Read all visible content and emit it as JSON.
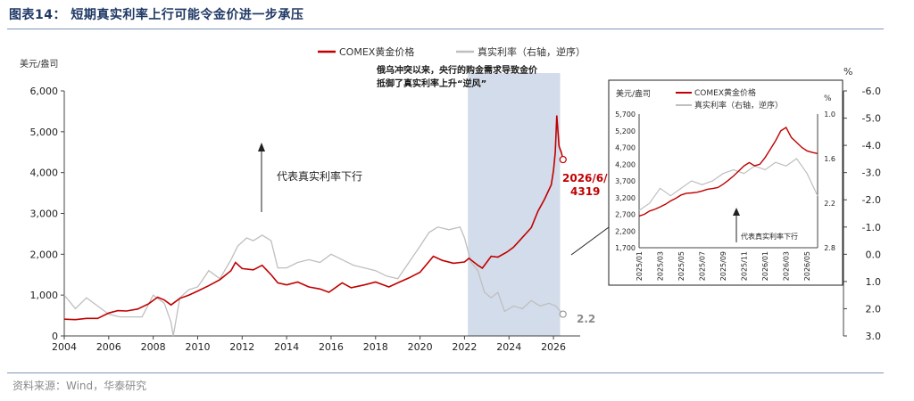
{
  "header": {
    "title": "图表14：  短期真实利率上行可能令金价进一步承压"
  },
  "footer": {
    "source": "资料来源：Wind，华泰研究"
  },
  "colors": {
    "gold": "#c00000",
    "real_rate": "#bfbfbf",
    "highlight": "#d3dcea",
    "rule": "#7f96b8"
  },
  "chart_data": [
    {
      "type": "line",
      "legend_position": "top",
      "grid": false,
      "ylabel": "美元/盎司",
      "y2label": "%",
      "ylim": [
        0,
        6000
      ],
      "y2lim": [
        3.0,
        -6.0
      ],
      "y2_inverted": true,
      "xlim": [
        2004,
        2026.8
      ],
      "x_ticks": [
        "2004",
        "2006",
        "2008",
        "2010",
        "2012",
        "2014",
        "2016",
        "2018",
        "2020",
        "2022",
        "2024",
        "2026"
      ],
      "y_ticks": [
        "0",
        "1,000",
        "2,000",
        "3,000",
        "4,000",
        "5,000",
        "6,000"
      ],
      "y2_ticks": [
        "3.0",
        "2.0",
        "1.0",
        "0.0",
        "-1.0",
        "-2.0",
        "-3.0",
        "-4.0",
        "-5.0",
        "-6.0"
      ],
      "shaded_region": [
        2022.15,
        2026.3
      ],
      "annotations": {
        "shaded": "俄乌冲突以来，央行的购金需求导致金价抵御了真实利率上升“逆风”",
        "shaded_lines": [
          "俄乌冲突以来，央行的购金需求导致金价",
          "抵御了真实利率上升“逆风”"
        ],
        "arrow_label": "代表真实利率下行",
        "end_date": "2026/6/5",
        "end_gold": "4319",
        "end_rate": "2.2"
      },
      "series": [
        {
          "name": "COMEX黄金价格",
          "axis": "left",
          "x": [
            2004.0,
            2004.5,
            2005.0,
            2005.5,
            2006.0,
            2006.4,
            2006.8,
            2007.3,
            2007.8,
            2008.2,
            2008.5,
            2008.8,
            2009.2,
            2009.6,
            2010.0,
            2010.5,
            2011.0,
            2011.5,
            2011.7,
            2012.0,
            2012.5,
            2012.9,
            2013.3,
            2013.6,
            2014.0,
            2014.5,
            2015.0,
            2015.5,
            2015.9,
            2016.5,
            2016.9,
            2017.5,
            2018.0,
            2018.6,
            2019.0,
            2019.5,
            2020.0,
            2020.6,
            2021.0,
            2021.5,
            2022.0,
            2022.2,
            2022.6,
            2022.8,
            2023.2,
            2023.5,
            2023.9,
            2024.2,
            2024.5,
            2025.0,
            2025.3,
            2025.6,
            2025.9,
            2026.0,
            2026.08,
            2026.15,
            2026.25,
            2026.35,
            2026.43
          ],
          "values": [
            410,
            400,
            430,
            430,
            560,
            620,
            610,
            660,
            790,
            950,
            880,
            760,
            920,
            1000,
            1100,
            1230,
            1380,
            1600,
            1800,
            1650,
            1620,
            1730,
            1500,
            1300,
            1250,
            1320,
            1200,
            1150,
            1070,
            1300,
            1180,
            1250,
            1320,
            1200,
            1300,
            1420,
            1560,
            1950,
            1850,
            1780,
            1810,
            1900,
            1730,
            1660,
            1950,
            1930,
            2050,
            2170,
            2350,
            2650,
            3050,
            3350,
            3700,
            4050,
            4500,
            5400,
            4650,
            4500,
            4319
          ]
        },
        {
          "name": "真实利率（右轴，逆序）",
          "axis": "right",
          "x": [
            2004.0,
            2004.5,
            2005.0,
            2005.5,
            2006.0,
            2006.5,
            2007.0,
            2007.5,
            2008.0,
            2008.5,
            2008.8,
            2008.9,
            2009.2,
            2009.6,
            2010.0,
            2010.5,
            2011.0,
            2011.5,
            2011.8,
            2012.2,
            2012.5,
            2012.9,
            2013.3,
            2013.6,
            2014.0,
            2014.5,
            2015.0,
            2015.5,
            2016.0,
            2016.5,
            2017.0,
            2017.5,
            2018.0,
            2018.5,
            2019.0,
            2019.5,
            2020.0,
            2020.4,
            2020.8,
            2021.3,
            2021.8,
            2022.0,
            2022.3,
            2022.6,
            2022.9,
            2023.2,
            2023.5,
            2023.8,
            2024.2,
            2024.6,
            2025.0,
            2025.4,
            2025.8,
            2026.1,
            2026.43
          ],
          "values": [
            1.5,
            2.0,
            1.6,
            1.9,
            2.2,
            2.3,
            2.3,
            2.3,
            1.5,
            1.8,
            2.5,
            3.0,
            1.6,
            1.3,
            1.2,
            0.6,
            0.9,
            0.2,
            -0.3,
            -0.6,
            -0.5,
            -0.7,
            -0.5,
            0.5,
            0.5,
            0.3,
            0.2,
            0.3,
            0.0,
            0.2,
            0.4,
            0.5,
            0.6,
            0.8,
            0.9,
            0.3,
            -0.3,
            -0.8,
            -1.0,
            -0.9,
            -1.0,
            -0.6,
            0.3,
            0.6,
            1.4,
            1.6,
            1.4,
            2.1,
            1.9,
            2.0,
            1.7,
            1.9,
            1.8,
            1.9,
            2.2
          ]
        }
      ]
    },
    {
      "type": "line",
      "legend_position": "top-left",
      "grid": false,
      "ylabel": "美元/盎司",
      "y2label": "%",
      "ylim": [
        1700,
        5700
      ],
      "y2lim": [
        2.8,
        1.0
      ],
      "y2_inverted": true,
      "x_ticks": [
        "2025/01",
        "2025/03",
        "2025/05",
        "2025/07",
        "2025/09",
        "2025/11",
        "2026/01",
        "2026/03",
        "2026/05"
      ],
      "y_ticks": [
        "1,700",
        "2,200",
        "2,700",
        "3,200",
        "3,700",
        "4,200",
        "4,700",
        "5,200",
        "5,700"
      ],
      "y2_ticks": [
        "2.8",
        "2.2",
        "1.6",
        "1.0"
      ],
      "arrow_label": "代表真实利率下行",
      "series": [
        {
          "name": "COMEX黄金价格",
          "axis": "left",
          "x": [
            0,
            0.5,
            1,
            1.5,
            2,
            2.5,
            3,
            3.5,
            4,
            4.5,
            5,
            5.5,
            6,
            6.5,
            7,
            7.5,
            8,
            8.5,
            9,
            9.5,
            10,
            10.5,
            11,
            11.5,
            12,
            12.5,
            13,
            13.5,
            14,
            14.5,
            15,
            15.5,
            16,
            16.5,
            17
          ],
          "values": [
            2650,
            2700,
            2800,
            2850,
            2920,
            3000,
            3100,
            3180,
            3280,
            3330,
            3340,
            3360,
            3400,
            3450,
            3470,
            3500,
            3600,
            3720,
            3850,
            4000,
            4150,
            4250,
            4150,
            4200,
            4400,
            4650,
            4900,
            5200,
            5300,
            5000,
            4850,
            4700,
            4600,
            4550,
            4520
          ]
        },
        {
          "name": "真实利率（右轴，逆序）",
          "axis": "right",
          "x": [
            0,
            1,
            2,
            3,
            4,
            5,
            6,
            7,
            8,
            9,
            10,
            11,
            12,
            13,
            14,
            15,
            16,
            17
          ],
          "values": [
            2.3,
            2.2,
            2.0,
            2.1,
            2.0,
            1.9,
            1.95,
            1.9,
            1.8,
            1.75,
            1.8,
            1.7,
            1.75,
            1.65,
            1.7,
            1.6,
            1.8,
            2.1
          ]
        }
      ]
    }
  ]
}
